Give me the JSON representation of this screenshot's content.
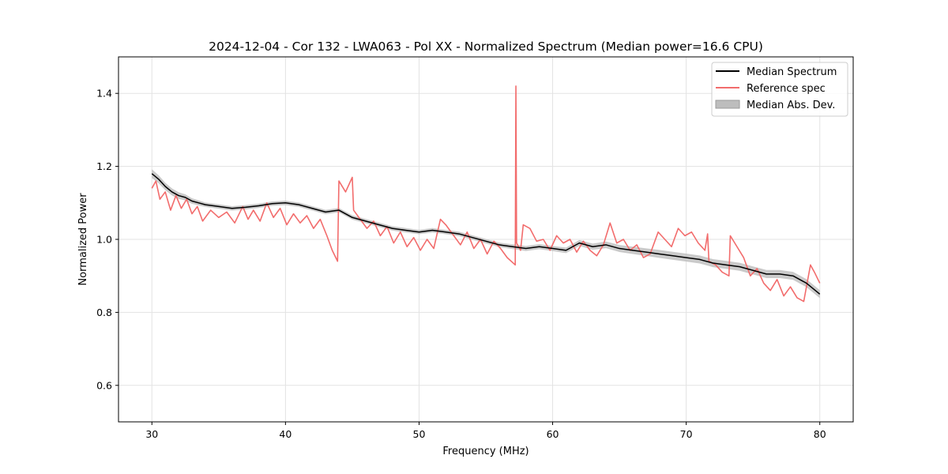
{
  "chart_data": {
    "type": "line",
    "title": "2024-12-04 - Cor 132 - LWA063 - Pol XX - Normalized Spectrum (Median power=16.6 CPU)",
    "xlabel": "Frequency (MHz)",
    "ylabel": "Normalized Power",
    "xlim": [
      27.5,
      82.5
    ],
    "ylim": [
      0.5,
      1.5
    ],
    "xticks": [
      30,
      40,
      50,
      60,
      70,
      80
    ],
    "yticks": [
      0.6,
      0.8,
      1.0,
      1.2,
      1.4
    ],
    "xtick_labels": [
      "30",
      "40",
      "50",
      "60",
      "70",
      "80"
    ],
    "ytick_labels": [
      "0.6",
      "0.8",
      "1.0",
      "1.2",
      "1.4"
    ],
    "grid": true,
    "legend_position": "top-right",
    "legend": [
      "Median Spectrum",
      "Reference spec",
      "Median Abs. Dev."
    ],
    "colors": {
      "median": "#000000",
      "reference": "#f26c6c",
      "mad_fill": "#bdbdbd"
    },
    "series": [
      {
        "name": "Median Spectrum",
        "x": [
          30,
          30.5,
          31,
          31.5,
          32,
          32.5,
          33,
          34,
          35,
          36,
          37,
          38,
          39,
          40,
          41,
          42,
          43,
          44,
          44.5,
          45,
          46,
          47,
          48,
          49,
          50,
          51,
          52,
          53,
          54,
          55,
          56,
          57,
          58,
          59,
          60,
          61,
          62,
          63,
          64,
          65,
          66,
          67,
          68,
          69,
          70,
          71,
          72,
          73,
          74,
          75,
          76,
          77,
          78,
          79,
          80
        ],
        "values": [
          1.18,
          1.165,
          1.145,
          1.13,
          1.12,
          1.115,
          1.105,
          1.095,
          1.09,
          1.085,
          1.088,
          1.092,
          1.098,
          1.1,
          1.095,
          1.085,
          1.075,
          1.08,
          1.07,
          1.06,
          1.05,
          1.04,
          1.03,
          1.025,
          1.02,
          1.025,
          1.02,
          1.015,
          1.005,
          0.995,
          0.985,
          0.98,
          0.975,
          0.98,
          0.975,
          0.97,
          0.99,
          0.98,
          0.985,
          0.975,
          0.97,
          0.965,
          0.96,
          0.955,
          0.95,
          0.945,
          0.935,
          0.93,
          0.925,
          0.915,
          0.905,
          0.905,
          0.9,
          0.88,
          0.85
        ]
      },
      {
        "name": "Reference spec",
        "x": [
          30,
          30.3,
          30.6,
          31,
          31.4,
          31.8,
          32.2,
          32.6,
          33,
          33.4,
          33.8,
          34.4,
          35,
          35.6,
          36.2,
          36.8,
          37.2,
          37.6,
          38.1,
          38.6,
          39.1,
          39.6,
          40.1,
          40.6,
          41.1,
          41.6,
          42.1,
          42.6,
          43.1,
          43.5,
          43.9,
          44.0,
          44.5,
          45.0,
          45.1,
          45.6,
          46.1,
          46.6,
          47.1,
          47.6,
          48.1,
          48.6,
          49.1,
          49.6,
          50.1,
          50.6,
          51.1,
          51.6,
          52.0,
          52.6,
          53.1,
          53.6,
          54.1,
          54.6,
          55.1,
          55.6,
          56.1,
          56.6,
          57.2,
          57.25,
          57.3,
          57.6,
          57.8,
          58.3,
          58.8,
          59.3,
          59.8,
          60.3,
          60.8,
          61.3,
          61.8,
          62.3,
          62.8,
          63.3,
          63.8,
          64.3,
          64.8,
          65.3,
          65.8,
          66.3,
          66.8,
          67.3,
          67.9,
          68.4,
          68.9,
          69.4,
          69.9,
          70.4,
          70.9,
          71.4,
          71.6,
          71.7,
          72.2,
          72.7,
          73.2,
          73.3,
          73.8,
          74.3,
          74.8,
          75.3,
          75.8,
          76.3,
          76.8,
          77.3,
          77.8,
          78.3,
          78.8,
          79.3,
          79.6,
          80
        ],
        "values": [
          1.14,
          1.16,
          1.11,
          1.13,
          1.08,
          1.12,
          1.085,
          1.11,
          1.07,
          1.09,
          1.05,
          1.08,
          1.06,
          1.075,
          1.045,
          1.09,
          1.055,
          1.08,
          1.05,
          1.1,
          1.06,
          1.085,
          1.04,
          1.07,
          1.045,
          1.065,
          1.03,
          1.055,
          1.01,
          0.97,
          0.94,
          1.16,
          1.13,
          1.17,
          1.08,
          1.055,
          1.03,
          1.05,
          1.01,
          1.035,
          0.99,
          1.02,
          0.98,
          1.005,
          0.97,
          1.0,
          0.975,
          1.055,
          1.04,
          1.01,
          0.985,
          1.02,
          0.975,
          1.0,
          0.96,
          0.995,
          0.975,
          0.95,
          0.93,
          1.42,
          0.99,
          0.97,
          1.04,
          1.03,
          0.995,
          1.0,
          0.97,
          1.01,
          0.99,
          1.0,
          0.965,
          0.995,
          0.97,
          0.955,
          0.985,
          1.045,
          0.99,
          1.0,
          0.97,
          0.985,
          0.95,
          0.96,
          1.02,
          1.0,
          0.98,
          1.03,
          1.01,
          1.02,
          0.99,
          0.97,
          1.015,
          0.94,
          0.93,
          0.91,
          0.9,
          1.01,
          0.98,
          0.95,
          0.9,
          0.92,
          0.88,
          0.86,
          0.89,
          0.845,
          0.87,
          0.84,
          0.83,
          0.93,
          0.91,
          0.88
        ]
      },
      {
        "name": "Median Abs. Dev.",
        "x": [
          30,
          31,
          32,
          34,
          36,
          38,
          40,
          42,
          44,
          46,
          48,
          50,
          52,
          54,
          56,
          58,
          60,
          62,
          64,
          66,
          68,
          70,
          72,
          74,
          76,
          78,
          80
        ],
        "values": [
          0.012,
          0.01,
          0.009,
          0.006,
          0.006,
          0.006,
          0.006,
          0.006,
          0.006,
          0.006,
          0.006,
          0.006,
          0.006,
          0.006,
          0.006,
          0.007,
          0.007,
          0.008,
          0.009,
          0.01,
          0.011,
          0.011,
          0.011,
          0.011,
          0.011,
          0.011,
          0.011
        ]
      }
    ]
  }
}
